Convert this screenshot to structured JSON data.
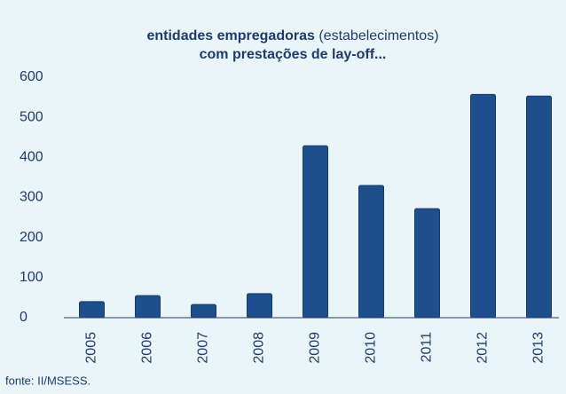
{
  "chart_data": {
    "type": "bar",
    "title": [
      "entidades empregadoras",
      "(estabelecimentos)",
      "com prestações de lay-off..."
    ],
    "categories": [
      "2005",
      "2006",
      "2007",
      "2008",
      "2009",
      "2010",
      "2011",
      "2012",
      "2013"
    ],
    "values": [
      40,
      55,
      33,
      60,
      429,
      330,
      272,
      557,
      553
    ],
    "color": "#1f4e8c",
    "ylim": [
      0,
      600
    ],
    "yticks": [
      0,
      100,
      200,
      300,
      400,
      500,
      600
    ],
    "grid": false,
    "source": "fonte: II/MSESS."
  }
}
